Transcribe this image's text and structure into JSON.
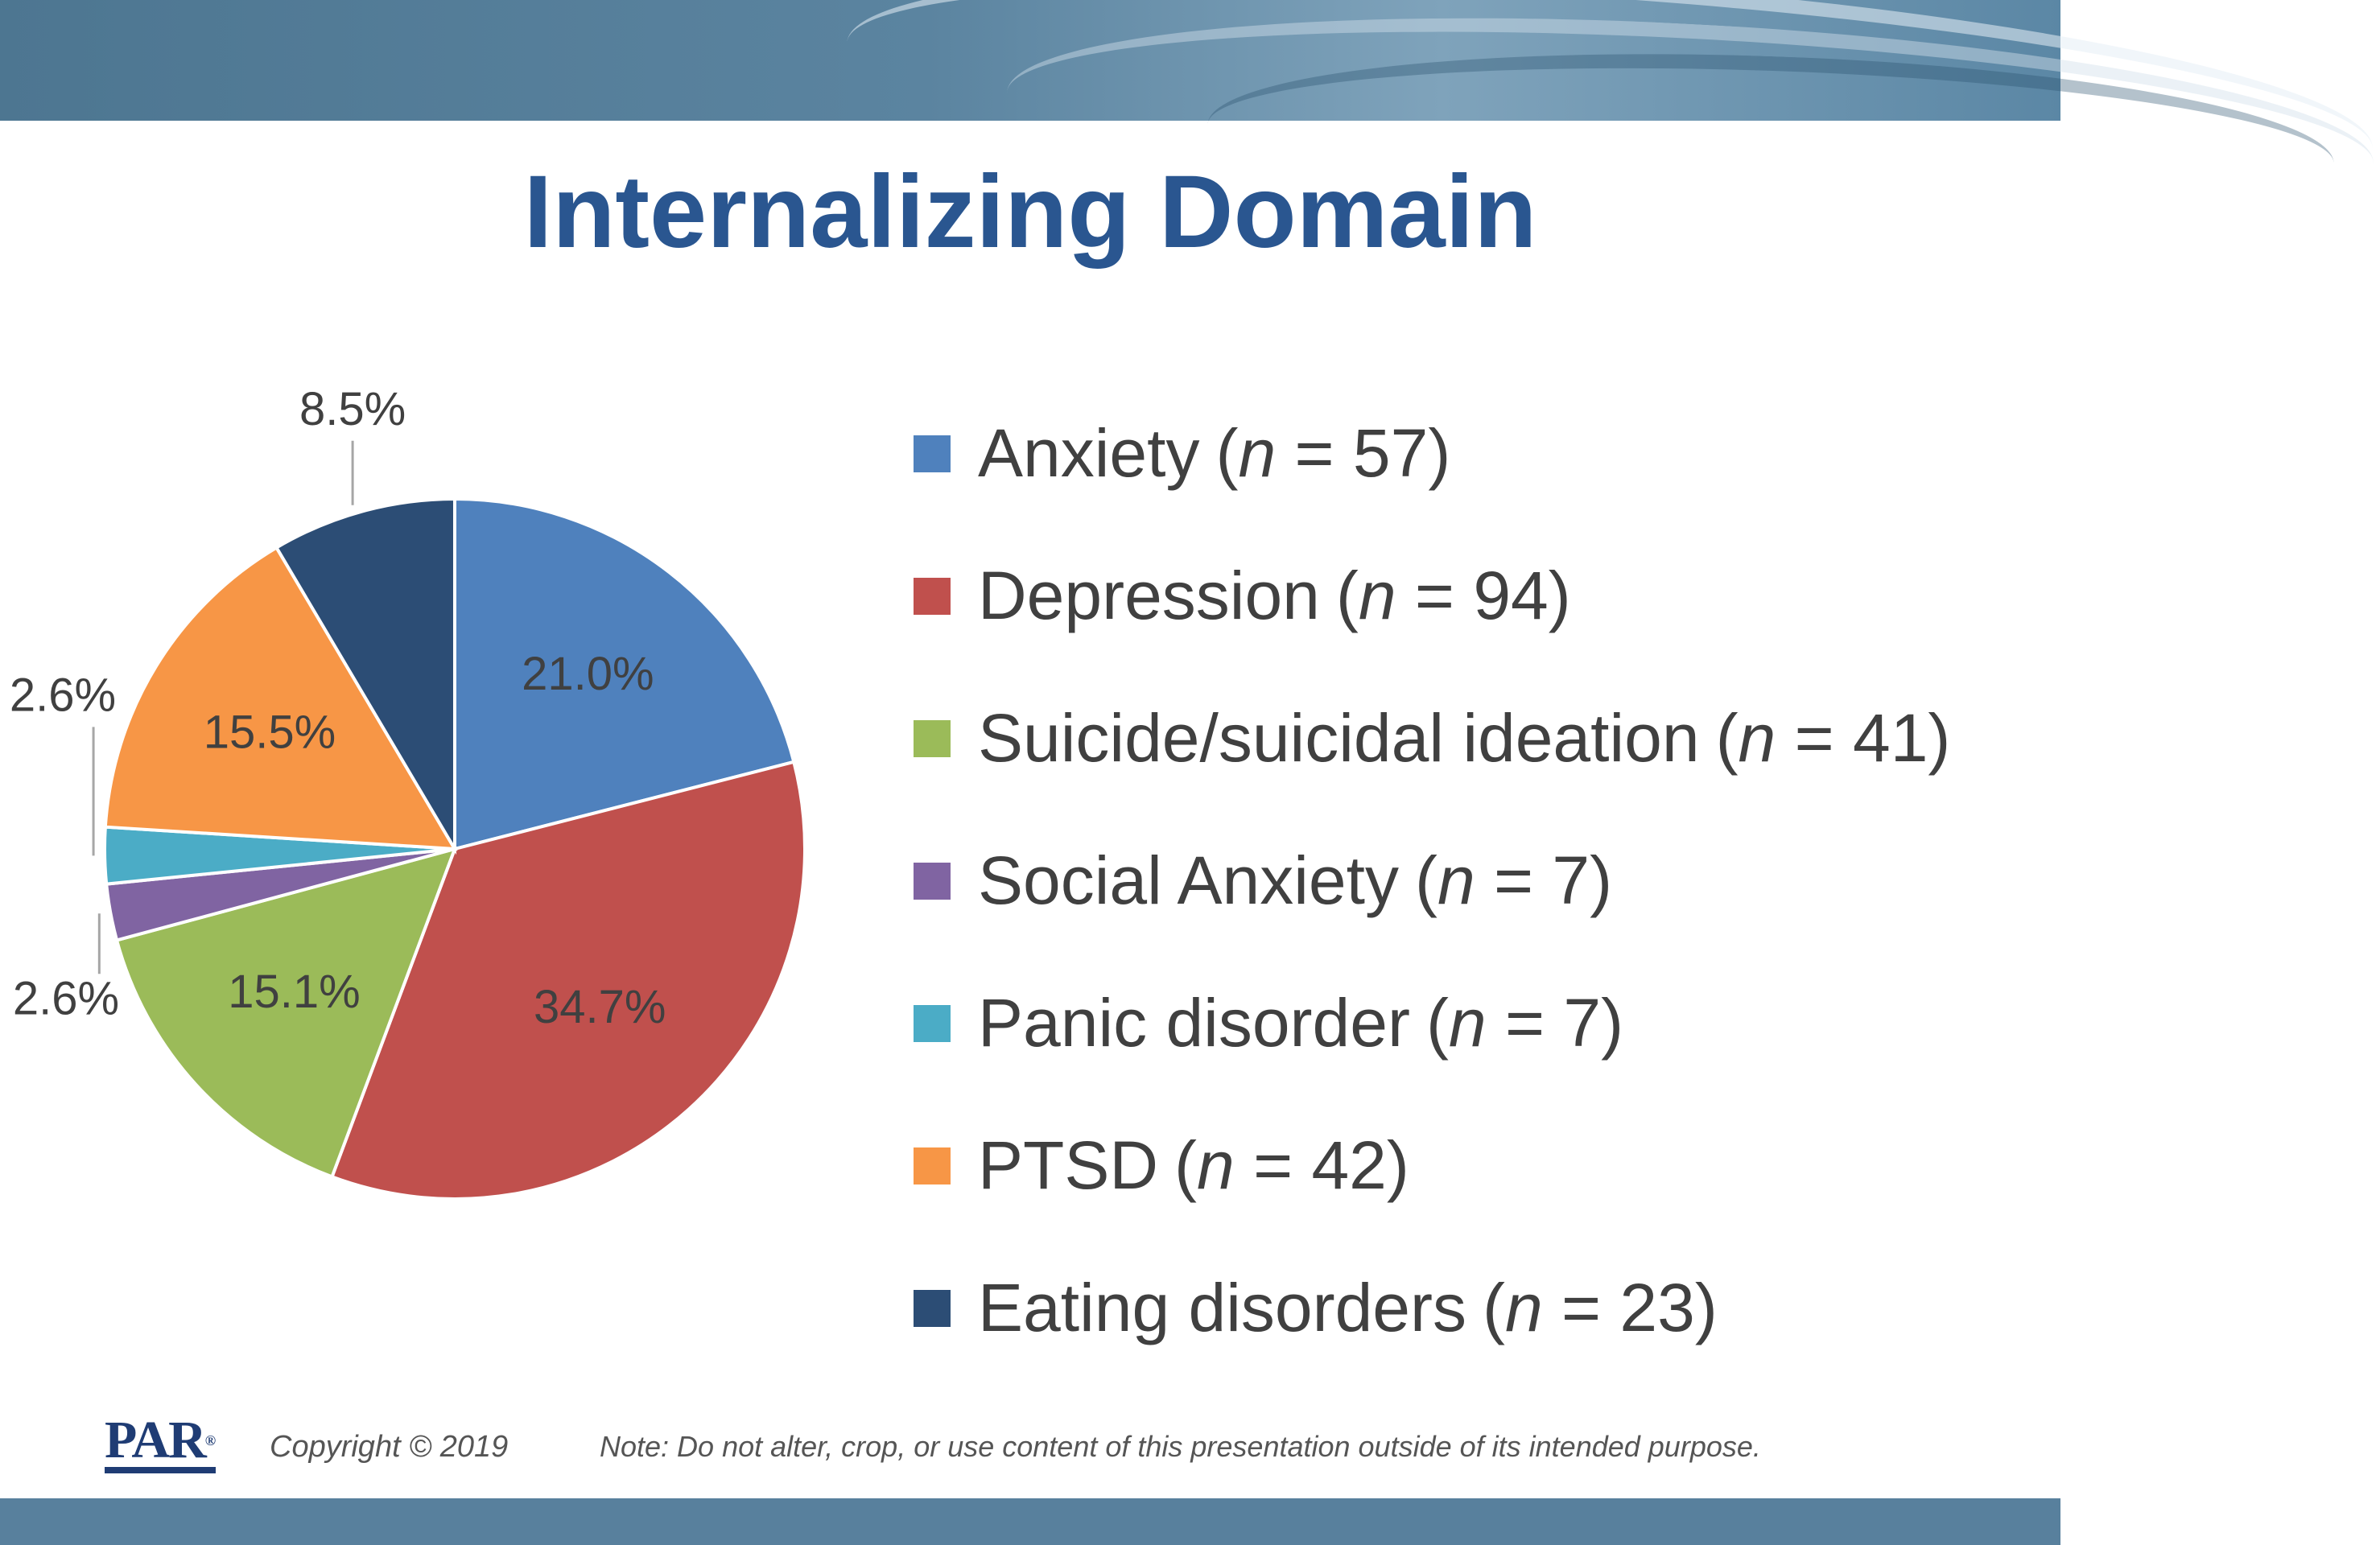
{
  "slide": {
    "title": "Internalizing Domain",
    "copyright": "Copyright © 2019",
    "note": "Note: Do not alter, crop, or use content of this presentation outside of its intended purpose.",
    "logo_text": "PAR",
    "logo_mark": "®"
  },
  "chart_data": {
    "type": "pie",
    "title": "Internalizing Domain",
    "start_angle_deg": 0,
    "direction": "clockwise",
    "legend_position": "right",
    "slices": [
      {
        "name": "Anxiety",
        "n": 57,
        "n_text": "(n = 57)",
        "value": 21.0,
        "label": "21.0%",
        "color": "#4f81bd",
        "label_position": "inside"
      },
      {
        "name": "Depression",
        "n": 94,
        "n_text": "(n = 94)",
        "value": 34.7,
        "label": "34.7%",
        "color": "#c0504d",
        "label_position": "inside"
      },
      {
        "name": "Suicide/suicidal ideation",
        "n": 41,
        "n_text": "(n = 41)",
        "value": 15.1,
        "label": "15.1%",
        "color": "#9bbb59",
        "label_position": "inside"
      },
      {
        "name": "Social Anxiety",
        "n": 7,
        "n_text": "(n = 7)",
        "value": 2.6,
        "label": "2.6%",
        "color": "#8064a2",
        "label_position": "outside"
      },
      {
        "name": "Panic disorder",
        "n": 7,
        "n_text": "(n = 7)",
        "value": 2.6,
        "label": "2.6%",
        "color": "#4bacc6",
        "label_position": "outside"
      },
      {
        "name": "PTSD",
        "n": 42,
        "n_text": "(n = 42)",
        "value": 15.5,
        "label": "15.5%",
        "color": "#f79646",
        "label_position": "inside"
      },
      {
        "name": "Eating disorders",
        "n": 23,
        "n_text": "(n = 23)",
        "value": 8.5,
        "label": "8.5%",
        "color": "#2c4d75",
        "label_position": "outside"
      }
    ]
  }
}
